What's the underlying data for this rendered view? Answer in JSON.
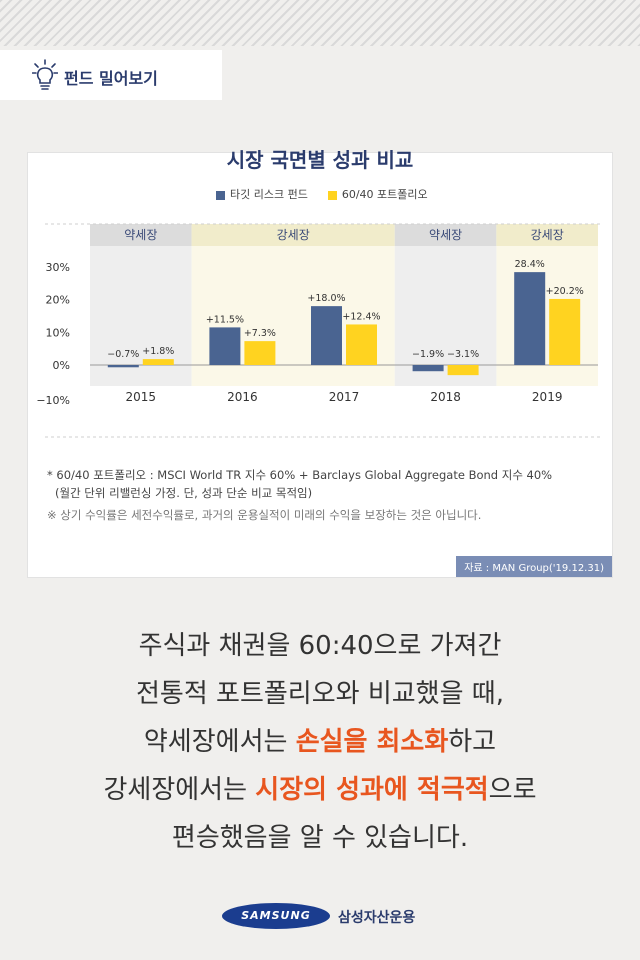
{
  "header": {
    "tag_label": "펀드 밀어보기"
  },
  "chart_data": {
    "type": "bar",
    "title": "시장 국면별 성과 비교",
    "categories": [
      "2015",
      "2016",
      "2017",
      "2018",
      "2019"
    ],
    "phases": [
      "약세장",
      "강세장",
      "강세장",
      "약세장",
      "강세장"
    ],
    "phase_groups": [
      {
        "label": "약세장",
        "from": 0,
        "to": 0
      },
      {
        "label": "강세장",
        "from": 1,
        "to": 2
      },
      {
        "label": "약세장",
        "from": 3,
        "to": 3
      },
      {
        "label": "강세장",
        "from": 4,
        "to": 4
      }
    ],
    "series": [
      {
        "name": "타깃 리스크 펀드",
        "color": "#4a6491",
        "values": [
          -0.7,
          11.5,
          18.0,
          -1.9,
          28.4
        ],
        "labels": [
          "−0.7%",
          "+11.5%",
          "+18.0%",
          "−1.9%",
          "28.4%"
        ]
      },
      {
        "name": "60/40 포트폴리오",
        "color": "#ffd320",
        "values": [
          1.8,
          7.3,
          12.4,
          -3.1,
          20.2
        ],
        "labels": [
          "+1.8%",
          "+7.3%",
          "+12.4%",
          "−3.1%",
          "+20.2%"
        ]
      }
    ],
    "ylim": [
      -10,
      30
    ],
    "yticks": [
      -10,
      0,
      10,
      20,
      30
    ],
    "ytick_labels": [
      "−10%",
      "0%",
      "10%",
      "20%",
      "30%"
    ],
    "colors": {
      "bear_bg": "#eeeeee",
      "bear_head": "#dcdcdc",
      "bull_bg": "#fbf8e8",
      "bull_head": "#f1eccb"
    }
  },
  "notes": {
    "line1": "* 60/40 포트폴리오 : MSCI World TR 지수 60% + Barclays Global Aggregate Bond 지수 40%",
    "line2": "(월간 단위 리밸런싱 가정. 단, 성과 단순 비교 목적임)",
    "line3": "※ 상기 수익률은 세전수익률로, 과거의 운용실적이 미래의 수익을 보장하는 것은 아닙니다."
  },
  "source": "자료 : MAN Group('19.12.31)",
  "body": {
    "line1": "주식과 채권을 60:40으로 가져간",
    "line2": "전통적 포트폴리오와 비교했을 때,",
    "line3_a": "약세장에서는 ",
    "line3_hl": "손실을 최소화",
    "line3_b": "하고",
    "line4_a": "강세장에서는 ",
    "line4_hl": "시장의 성과에 적극적",
    "line4_b": "으로",
    "line5": "편승했음을 알 수 있습니다."
  },
  "footer": {
    "logo_text": "SAMSUNG",
    "company": "삼성자산운용"
  }
}
